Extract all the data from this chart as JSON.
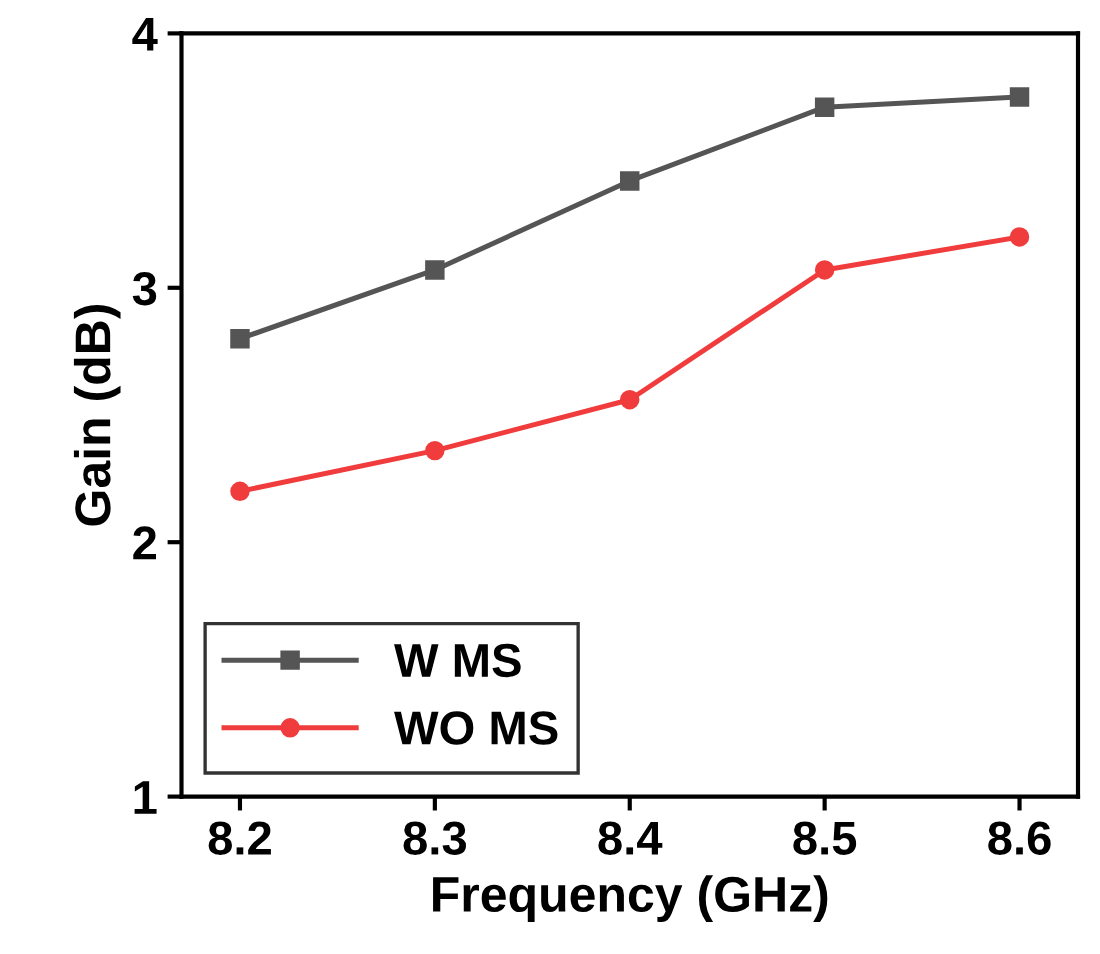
{
  "chart_data": {
    "type": "line",
    "xlabel": "Frequency (GHz)",
    "ylabel": "Gain (dB)",
    "x": [
      8.2,
      8.3,
      8.4,
      8.5,
      8.6
    ],
    "series": [
      {
        "name": "W MS",
        "color": "#555555",
        "marker": "square",
        "values": [
          2.8,
          3.07,
          3.42,
          3.71,
          3.75
        ]
      },
      {
        "name": "WO MS",
        "color": "#f03c3c",
        "marker": "circle",
        "values": [
          2.2,
          2.36,
          2.56,
          3.07,
          3.2
        ]
      }
    ],
    "xlim": [
      8.17,
      8.63
    ],
    "xticks": [
      8.2,
      8.3,
      8.4,
      8.5,
      8.6
    ],
    "ylim": [
      1,
      4
    ],
    "yticks": [
      1,
      2,
      3,
      4
    ],
    "grid": false,
    "legend": "bottom left",
    "line_style": "solid"
  }
}
